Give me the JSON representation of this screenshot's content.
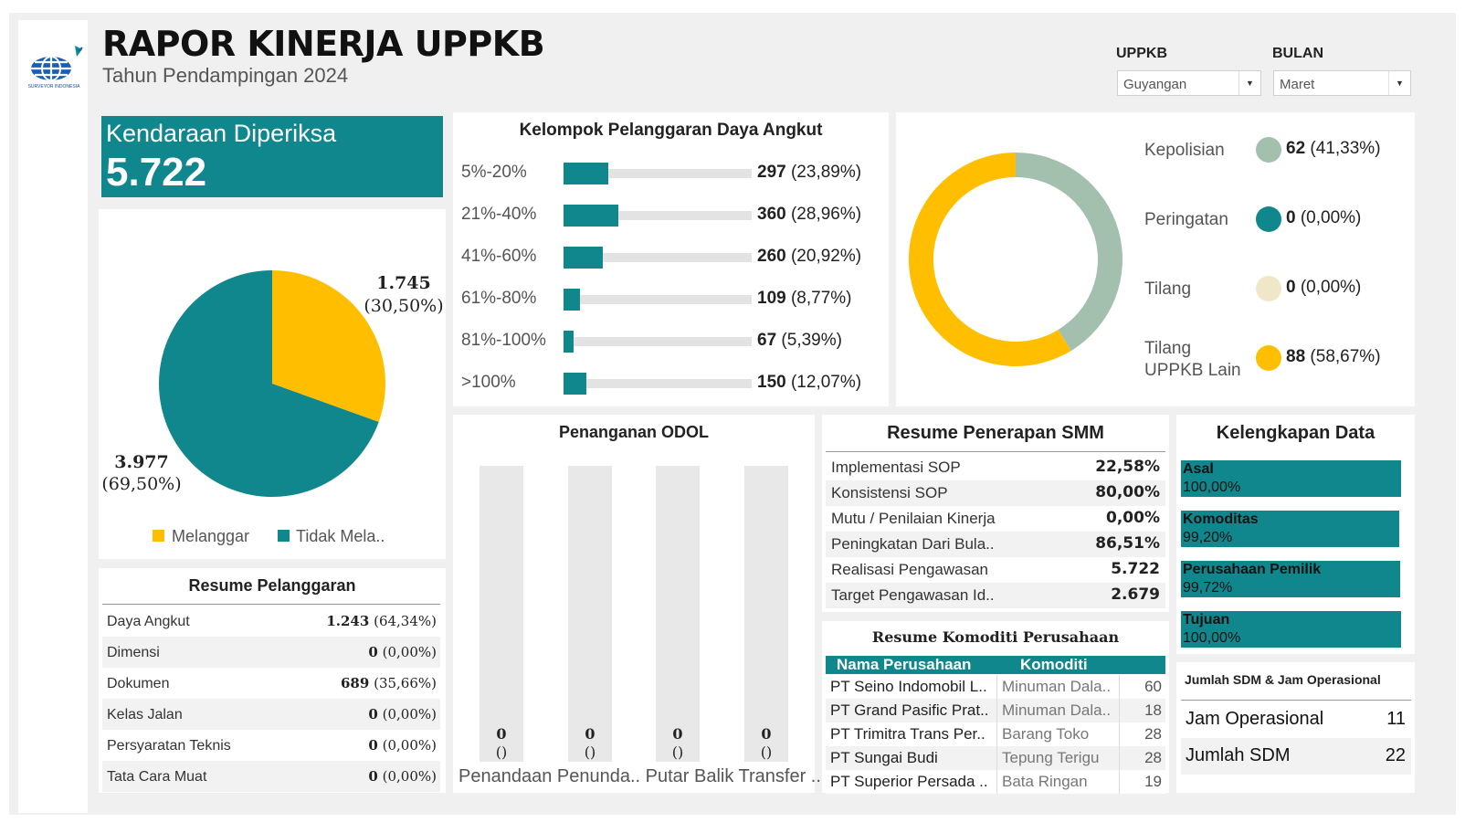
{
  "header": {
    "title": "RAPOR KINERJA UPPKB",
    "subtitle": "Tahun Pendampingan 2024",
    "logo_text": "SURVEYOR INDONESIA"
  },
  "filters": {
    "uppkb_label": "UPPKB",
    "uppkb_value": "Guyangan",
    "bulan_label": "BULAN",
    "bulan_value": "Maret"
  },
  "kpi": {
    "label": "Kendaraan Diperiksa",
    "value": "5.722"
  },
  "chart_data": [
    {
      "type": "pie",
      "categories": [
        "Melanggar",
        "Tidak Mela.."
      ],
      "values": [
        1745,
        3977
      ],
      "labels": [
        {
          "value": "1.745",
          "pct": "(30,50%)"
        },
        {
          "value": "3.977",
          "pct": "(69,50%)"
        }
      ],
      "colors": [
        "#ffbf00",
        "#0f878d"
      ],
      "legend": "bottom"
    },
    {
      "type": "bar",
      "title": "Kelompok Pelanggaran Daya Angkut",
      "categories": [
        "5%-20%",
        "21%-40%",
        "41%-60%",
        "61%-80%",
        "81%-100%",
        ">100%"
      ],
      "values": [
        297,
        360,
        260,
        109,
        67,
        150
      ],
      "value_labels": [
        "297",
        "360",
        "260",
        "109",
        "67",
        "150"
      ],
      "pct_labels": [
        "(23,89%)",
        "(28,96%)",
        "(20,92%)",
        "(8,77%)",
        "(5,39%)",
        "(12,07%)"
      ],
      "xlim": [
        0,
        1243
      ]
    },
    {
      "type": "pie",
      "style": "donut",
      "categories": [
        "Kepolisian",
        "Peringatan",
        "Tilang",
        "Tilang UPPKB Lain"
      ],
      "display_labels": [
        "Kepolisian",
        "Peringatan",
        "Tilang",
        "Tilang\nUPPKB Lain"
      ],
      "values": [
        62,
        0,
        0,
        88
      ],
      "value_labels": [
        "62",
        "0",
        "0",
        "88"
      ],
      "pct_labels": [
        "(41,33%)",
        "(0,00%)",
        "(0,00%)",
        "(58,67%)"
      ],
      "colors": [
        "#a3bfae",
        "#0f878d",
        "#f0e6c8",
        "#ffbf00"
      ],
      "legend": "right"
    },
    {
      "type": "bar",
      "title": "Penanganan ODOL",
      "categories": [
        "Penandaan",
        "Penunda..",
        "Putar Balik",
        "Transfer .."
      ],
      "axis_label": "Penandaan Penunda.. Putar Balik Transfer ..",
      "values": [
        0,
        0,
        0,
        0
      ],
      "value_labels": [
        "0",
        "0",
        "0",
        "0"
      ],
      "pct_labels": [
        "()",
        "()",
        "()",
        "()"
      ]
    }
  ],
  "resume_pelanggaran": {
    "title": "Resume Pelanggaran",
    "rows": [
      {
        "name": "Daya Angkut",
        "value": "1.243",
        "pct": "(64,34%)"
      },
      {
        "name": "Dimensi",
        "value": "0",
        "pct": "(0,00%)"
      },
      {
        "name": "Dokumen",
        "value": "689",
        "pct": "(35,66%)"
      },
      {
        "name": "Kelas Jalan",
        "value": "0",
        "pct": "(0,00%)"
      },
      {
        "name": "Persyaratan Teknis",
        "value": "0",
        "pct": "(0,00%)"
      },
      {
        "name": "Tata Cara Muat",
        "value": "0",
        "pct": "(0,00%)"
      }
    ]
  },
  "smm": {
    "title": "Resume Penerapan SMM",
    "rows": [
      {
        "name": "Implementasi SOP",
        "value": "22,58%"
      },
      {
        "name": "Konsistensi SOP",
        "value": "80,00%"
      },
      {
        "name": "Mutu / Penilaian Kinerja",
        "value": "0,00%"
      },
      {
        "name": "Peningkatan Dari Bula..",
        "value": "86,51%"
      },
      {
        "name": "Realisasi Pengawasan",
        "value": "5.722"
      },
      {
        "name": "Target Pengawasan Id..",
        "value": "2.679"
      }
    ]
  },
  "komoditi": {
    "title": "Resume Komoditi Perusahaan",
    "col_perusahaan": "Nama Perusahaan",
    "col_komoditi": "Komoditi",
    "rows": [
      {
        "perusahaan": "PT Seino Indomobil L..",
        "komoditi": "Minuman Dala..",
        "jumlah": "60"
      },
      {
        "perusahaan": "PT Grand Pasific Prat..",
        "komoditi": "Minuman Dala..",
        "jumlah": "18"
      },
      {
        "perusahaan": "PT Trimitra Trans Per..",
        "komoditi": "Barang Toko",
        "jumlah": "28"
      },
      {
        "perusahaan": "PT Sungai Budi",
        "komoditi": "Tepung Terigu",
        "jumlah": "28"
      },
      {
        "perusahaan": "PT Superior Persada ..",
        "komoditi": "Bata Ringan",
        "jumlah": "19"
      }
    ]
  },
  "kelengkapan": {
    "title": "Kelengkapan Data",
    "rows": [
      {
        "name": "Asal",
        "value": "100,00%",
        "fraction": 1.0
      },
      {
        "name": "Komoditas",
        "value": "99,20%",
        "fraction": 0.992
      },
      {
        "name": "Perusahaan Pemilik",
        "value": "99,72%",
        "fraction": 0.9972
      },
      {
        "name": "Tujuan",
        "value": "100,00%",
        "fraction": 1.0
      }
    ]
  },
  "sdm": {
    "title": "Jumlah SDM & Jam Operasional",
    "rows": [
      {
        "name": "Jam Operasional",
        "value": "11"
      },
      {
        "name": "Jumlah SDM",
        "value": "22"
      }
    ]
  }
}
